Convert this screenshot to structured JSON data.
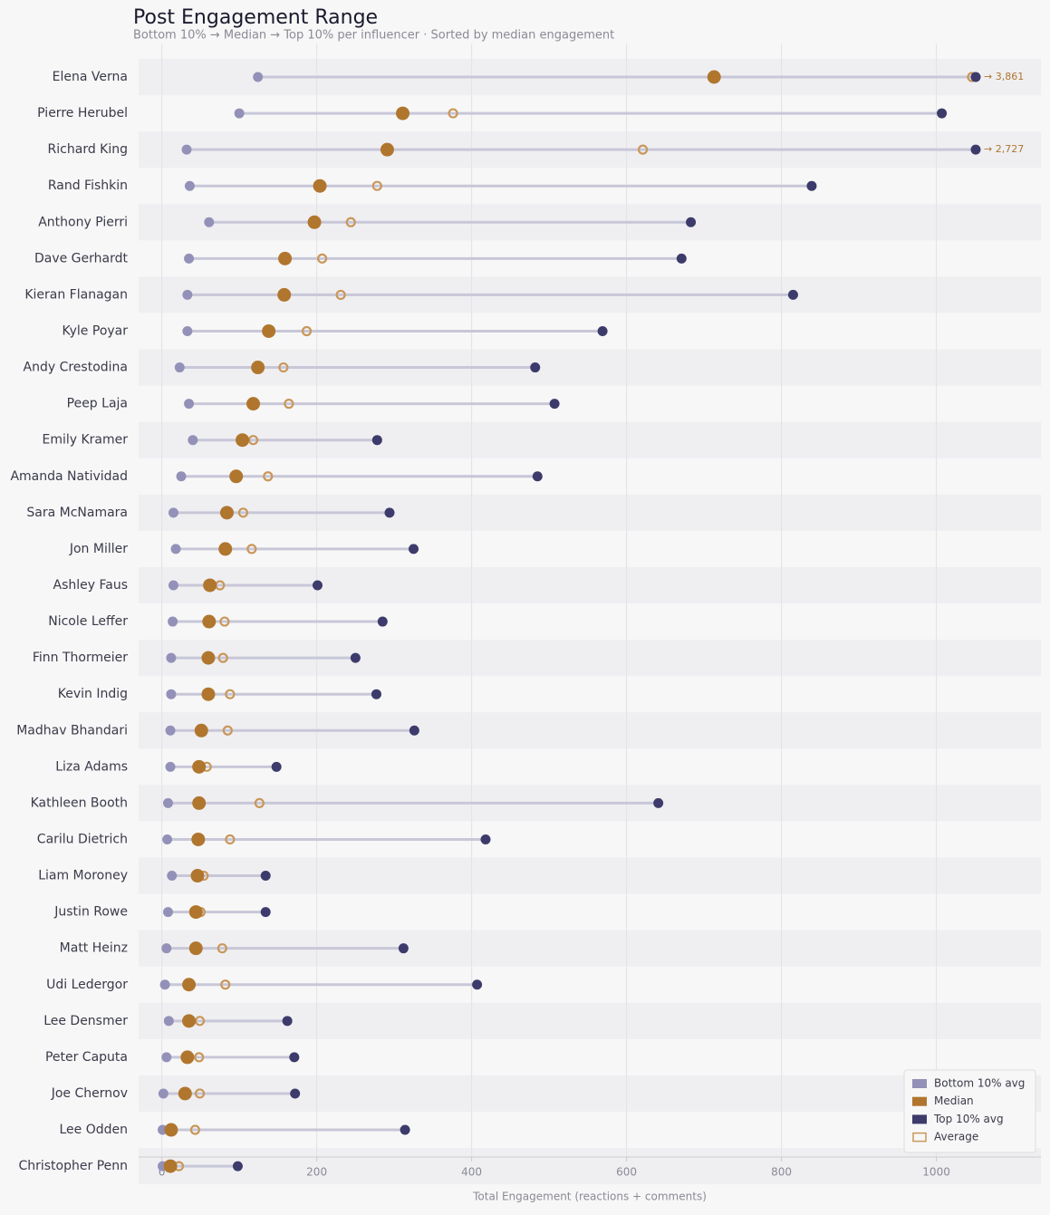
{
  "chart_data": {
    "type": "dumbbell",
    "title": "Post Engagement Range",
    "subtitle": "Bottom 10% → Median → Top 10% per influencer  ·  Sorted by median engagement",
    "x_label": "Total Engagement (reactions + comments)",
    "categories": [
      "Elena Verna",
      "Pierre Herubel",
      "Richard King",
      "Rand Fishkin",
      "Anthony Pierri",
      "Dave Gerhardt",
      "Kieran Flanagan",
      "Kyle Poyar",
      "Andy Crestodina",
      "Peep Laja",
      "Emily Kramer",
      "Amanda Natividad",
      "Sara McNamara",
      "Jon Miller",
      "Ashley Faus",
      "Nicole Leffer",
      "Finn Thormeier",
      "Kevin Indig",
      "Madhav Bhandari",
      "Liza Adams",
      "Kathleen Booth",
      "Carilu Dietrich",
      "Liam Moroney",
      "Justin Rowe",
      "Matt Heinz",
      "Udi Ledergor",
      "Lee Densmer",
      "Peter Caputa",
      "Joe Chernov",
      "Lee Odden",
      "Christopher Penn"
    ],
    "series": [
      {
        "name": "Bottom 10% avg",
        "color": "#9391b8",
        "values": [
          124,
          100,
          32,
          36,
          61,
          35,
          33,
          33,
          23,
          35,
          40,
          25,
          15,
          18,
          15,
          14,
          12,
          12,
          11,
          11,
          8,
          7,
          13,
          8,
          6,
          4,
          9,
          6,
          2,
          1,
          1
        ]
      },
      {
        "name": "Median",
        "color": "#b0762e",
        "values": [
          713,
          311,
          291,
          204,
          197,
          159,
          158,
          138,
          124,
          118,
          104,
          96,
          84,
          82,
          62,
          61,
          60,
          60,
          51,
          48,
          48,
          47,
          46,
          44,
          44,
          35,
          35,
          33,
          30,
          12,
          11
        ]
      },
      {
        "name": "Top 10% avg",
        "color": "#3d3b6b",
        "values": [
          3861,
          1007,
          2727,
          839,
          683,
          671,
          815,
          569,
          482,
          507,
          278,
          485,
          294,
          325,
          201,
          285,
          250,
          277,
          326,
          148,
          641,
          418,
          134,
          134,
          312,
          407,
          162,
          171,
          172,
          314,
          98
        ],
        "value_labels": [
          "→ 3,861",
          null,
          "→ 2,727",
          null,
          null,
          null,
          null,
          null,
          null,
          null,
          null,
          null,
          null,
          null,
          null,
          null,
          null,
          null,
          null,
          null,
          null,
          null,
          null,
          null,
          null,
          null,
          null,
          null,
          null,
          null,
          null
        ]
      },
      {
        "name": "Average",
        "color": "#c9975a",
        "values": [
          1046,
          376,
          621,
          278,
          244,
          207,
          231,
          187,
          157,
          164,
          118,
          137,
          105,
          116,
          75,
          81,
          79,
          88,
          85,
          58,
          126,
          88,
          54,
          50,
          78,
          82,
          49,
          48,
          49,
          43,
          22
        ]
      }
    ],
    "xlim": [
      -30,
      1135
    ],
    "xticks": [
      0,
      200,
      400,
      600,
      800,
      1000
    ],
    "grid": true,
    "legend": "lower right"
  }
}
